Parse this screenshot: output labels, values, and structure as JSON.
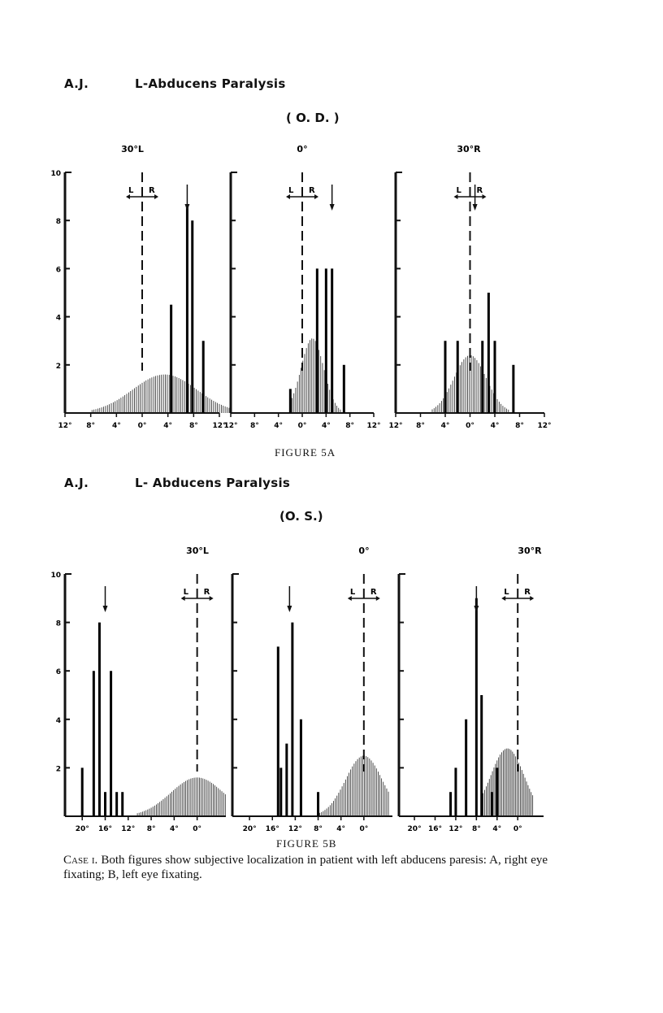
{
  "figure_a": {
    "patient": "A.J.",
    "title": "L-Abducens Paralysis",
    "eye": "( O. D. )",
    "caption": "FIGURE 5A"
  },
  "figure_b": {
    "patient": "A.J.",
    "title": "L- Abducens Paralysis",
    "eye": "(O. S.)",
    "caption": "FIGURE 5B"
  },
  "case_caption": {
    "lead": "Case i.",
    "text": "Both figures show subjective localization in patient with left abducens paresis: A, right eye fixating; B, left eye fixating."
  },
  "chart_data": [
    {
      "type": "bar",
      "figure": "5A",
      "panel_title": "30°L",
      "x_tick_labels": [
        "12°",
        "8°",
        "4°",
        "0°",
        "4°",
        "8°",
        "12°"
      ],
      "xlim": [
        -12,
        12
      ],
      "y_tick_labels": [
        "2",
        "4",
        "6",
        "8",
        "10"
      ],
      "ylim": [
        0,
        10
      ],
      "lr_marker": {
        "L": "L",
        "R": "R",
        "x": 0
      },
      "arrow_x": 7,
      "bars": [
        {
          "x": 4.5,
          "y": 4.5
        },
        {
          "x": 7,
          "y": 8.6
        },
        {
          "x": 7.8,
          "y": 8
        },
        {
          "x": 9.5,
          "y": 3
        }
      ],
      "distribution": {
        "mean": 3.5,
        "sd": 5,
        "peak": 1.6,
        "range": [
          -9,
          14
        ]
      }
    },
    {
      "type": "bar",
      "figure": "5A",
      "panel_title": "0°",
      "x_tick_labels": [
        "12°",
        "8°",
        "4°",
        "0°",
        "4°",
        "8°",
        "12°"
      ],
      "xlim": [
        -12,
        12
      ],
      "ylim": [
        0,
        10
      ],
      "lr_marker": {
        "L": "L",
        "R": "R",
        "x": 0
      },
      "arrow_x": 5,
      "bars": [
        {
          "x": -2,
          "y": 1
        },
        {
          "x": 2.5,
          "y": 6
        },
        {
          "x": 4,
          "y": 6
        },
        {
          "x": 5,
          "y": 6
        },
        {
          "x": 7,
          "y": 2
        }
      ],
      "distribution": {
        "mean": 1.7,
        "sd": 1.9,
        "peak": 3.1,
        "range": [
          -2,
          7.5
        ]
      }
    },
    {
      "type": "bar",
      "figure": "5A",
      "panel_title": "30°R",
      "x_tick_labels": [
        "12°",
        "8°",
        "4°",
        "0°",
        "4°",
        "8°",
        "12°"
      ],
      "xlim": [
        -12,
        12
      ],
      "ylim": [
        0,
        10
      ],
      "lr_marker": {
        "L": "L",
        "R": "R",
        "x": 0
      },
      "arrow_x": 0.8,
      "bars": [
        {
          "x": -4,
          "y": 3
        },
        {
          "x": -2,
          "y": 3
        },
        {
          "x": 2,
          "y": 3
        },
        {
          "x": 3,
          "y": 5
        },
        {
          "x": 4,
          "y": 3
        },
        {
          "x": 7,
          "y": 2
        }
      ],
      "distribution": {
        "mean": 0,
        "sd": 2.6,
        "peak": 2.4,
        "range": [
          -7,
          7
        ]
      }
    },
    {
      "type": "bar",
      "figure": "5B",
      "panel_title": "30°L",
      "x_tick_labels": [
        "20°",
        "16°",
        "12°",
        "8°",
        "4°",
        "0°"
      ],
      "xlim": [
        -23,
        5
      ],
      "y_tick_labels": [
        "2",
        "4",
        "6",
        "8",
        "10"
      ],
      "ylim": [
        0,
        10
      ],
      "lr_marker": {
        "L": "L",
        "R": "R",
        "x": 0
      },
      "arrow_x": -16,
      "bars": [
        {
          "x": -20,
          "y": 2
        },
        {
          "x": -18,
          "y": 6
        },
        {
          "x": -17,
          "y": 8
        },
        {
          "x": -16,
          "y": 1
        },
        {
          "x": -15,
          "y": 6
        },
        {
          "x": -14,
          "y": 1
        },
        {
          "x": -13,
          "y": 1
        }
      ],
      "distribution": {
        "mean": 0,
        "sd": 4.6,
        "peak": 1.6,
        "range": [
          -11,
          5
        ]
      }
    },
    {
      "type": "bar",
      "figure": "5B",
      "panel_title": "0°",
      "x_tick_labels": [
        "20°",
        "16°",
        "12°",
        "8°",
        "4°",
        "0°"
      ],
      "xlim": [
        -23,
        5
      ],
      "ylim": [
        0,
        10
      ],
      "lr_marker": {
        "L": "L",
        "R": "R",
        "x": 0
      },
      "arrow_x": -13,
      "bars": [
        {
          "x": -15,
          "y": 7
        },
        {
          "x": -14.5,
          "y": 2
        },
        {
          "x": -13.5,
          "y": 3
        },
        {
          "x": -12.5,
          "y": 8
        },
        {
          "x": -11,
          "y": 4
        },
        {
          "x": -8,
          "y": 1
        }
      ],
      "distribution": {
        "mean": 0,
        "sd": 3.2,
        "peak": 2.5,
        "range": [
          -8,
          4.5
        ]
      }
    },
    {
      "type": "bar",
      "figure": "5B",
      "panel_title": "30°R",
      "x_tick_labels": [
        "20°",
        "16°",
        "12°",
        "8°",
        "4°",
        "0°"
      ],
      "xlim": [
        -23,
        5
      ],
      "ylim": [
        0,
        10
      ],
      "lr_marker": {
        "L": "L",
        "R": "R",
        "x": 0
      },
      "arrow_x": -8,
      "bars": [
        {
          "x": -13,
          "y": 1
        },
        {
          "x": -12,
          "y": 2
        },
        {
          "x": -10,
          "y": 4
        },
        {
          "x": -8,
          "y": 9
        },
        {
          "x": -7,
          "y": 5
        },
        {
          "x": -5,
          "y": 1
        },
        {
          "x": -4,
          "y": 2
        }
      ],
      "distribution": {
        "mean": -2,
        "sd": 3.2,
        "peak": 2.8,
        "range": [
          -7,
          3
        ]
      }
    }
  ]
}
